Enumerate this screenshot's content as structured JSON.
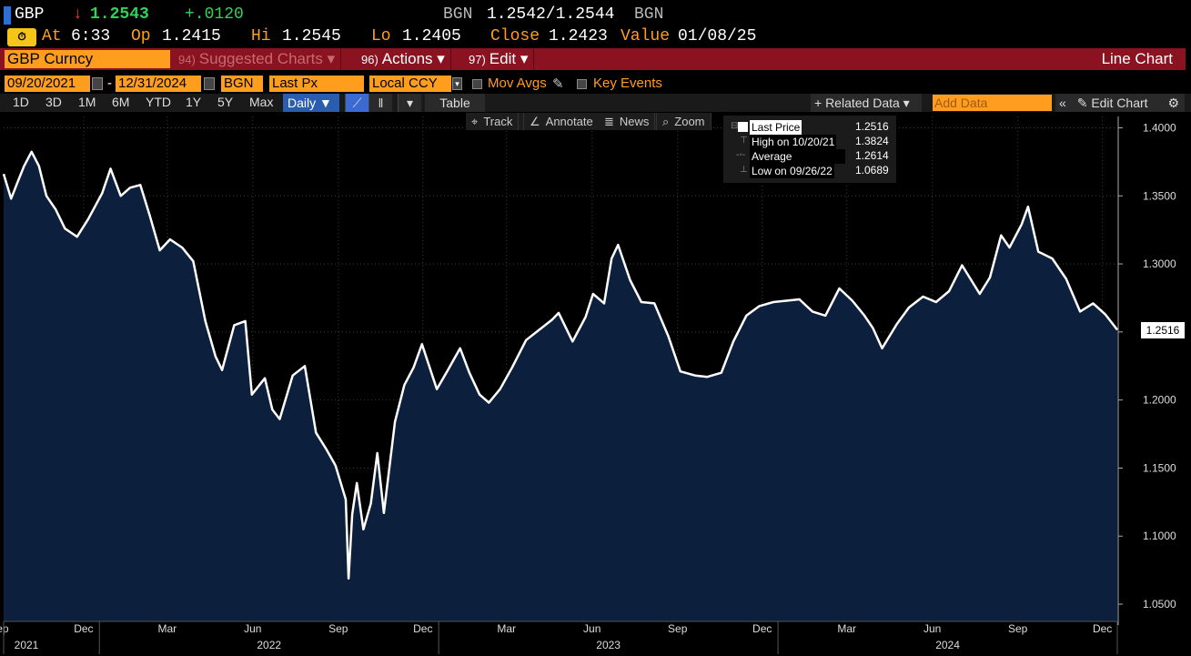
{
  "header": {
    "ticker": "GBP",
    "arrow": "↓",
    "last": "1.2543",
    "change": "+.0120",
    "source_l": "BGN",
    "bid_ask": "1.2542/1.2544",
    "source_r": "BGN",
    "at_label": "At",
    "time": "6:33",
    "op_label": "Op",
    "open": "1.2415",
    "hi_label": "Hi",
    "high": "1.2545",
    "lo_label": "Lo",
    "low": "1.2405",
    "close_label": "Close",
    "close": "1.2423",
    "value_label": "Value",
    "value_date": "01/08/25"
  },
  "toolbar": {
    "security": "GBP Curncy",
    "m94_num": "94)",
    "m94": "Suggested Charts",
    "m96_num": "96)",
    "m96": "Actions",
    "m97_num": "97)",
    "m97": "Edit",
    "chart_type": "Line Chart"
  },
  "controls": {
    "start_date": "09/20/2021",
    "dash": "-",
    "end_date": "12/31/2024",
    "source": "BGN",
    "field": "Last Px",
    "currency": "Local CCY",
    "mov_avgs": "Mov Avgs",
    "key_events": "Key Events"
  },
  "periods": {
    "items": [
      "1D",
      "3D",
      "1M",
      "6M",
      "YTD",
      "1Y",
      "5Y",
      "Max"
    ],
    "frequency": "Daily ▼",
    "table": "Table",
    "related": "+ Related Data ▾",
    "add_data_placeholder": "Add Data",
    "edit_chart": "Edit Chart"
  },
  "chart_tools": [
    "Track",
    "Annotate",
    "News",
    "Zoom"
  ],
  "legend": {
    "last_price_label": "Last Price",
    "last_price": "1.2516",
    "high_label": "High on 10/20/21",
    "high": "1.3824",
    "average_label": "Average",
    "average": "1.2614",
    "low_label": "Low on 09/26/22",
    "low": "1.0689"
  },
  "last_label": "1.2516",
  "colors": {
    "line": "#ffffff",
    "fill": "#0c1f3d",
    "accent": "#ff9d1e",
    "toolbar": "#8b1220"
  },
  "chart_data": {
    "type": "area",
    "x_start": "2021-09-20",
    "x_end": "2024-12-31",
    "ylim": [
      1.04,
      1.405
    ],
    "yticks": [
      "1.4000",
      "1.3500",
      "1.3000",
      "1.2500",
      "1.2000",
      "1.1500",
      "1.1000",
      "1.0500"
    ],
    "month_ticks": [
      "Sep",
      "Dec",
      "Mar",
      "Jun",
      "Sep",
      "Dec",
      "Mar",
      "Jun",
      "Sep",
      "Dec",
      "Mar",
      "Jun",
      "Sep",
      "Dec"
    ],
    "year_ticks": [
      "2021",
      "2022",
      "2023",
      "2024"
    ],
    "series": [
      {
        "x": [
          "2021-09-20",
          "2021-09-28",
          "2021-10-05",
          "2021-10-12",
          "2021-10-20",
          "2021-10-28",
          "2021-11-05",
          "2021-11-15",
          "2021-11-25",
          "2021-12-08",
          "2021-12-20",
          "2022-01-04",
          "2022-01-13",
          "2022-01-24",
          "2022-02-03",
          "2022-02-14",
          "2022-02-24",
          "2022-03-07",
          "2022-03-18",
          "2022-03-31",
          "2022-04-12",
          "2022-04-25",
          "2022-05-06",
          "2022-05-13",
          "2022-05-26",
          "2022-06-07",
          "2022-06-14",
          "2022-06-28",
          "2022-07-06",
          "2022-07-14",
          "2022-07-28",
          "2022-08-10",
          "2022-08-22",
          "2022-09-02",
          "2022-09-12",
          "2022-09-23",
          "2022-09-26",
          "2022-09-30",
          "2022-10-05",
          "2022-10-12",
          "2022-10-20",
          "2022-10-27",
          "2022-11-03",
          "2022-11-15",
          "2022-11-25",
          "2022-12-05",
          "2022-12-14",
          "2022-12-30",
          "2023-01-10",
          "2023-01-24",
          "2023-02-03",
          "2023-02-14",
          "2023-02-24",
          "2023-03-08",
          "2023-03-21",
          "2023-04-05",
          "2023-04-18",
          "2023-05-03",
          "2023-05-10",
          "2023-05-25",
          "2023-06-08",
          "2023-06-16",
          "2023-06-28",
          "2023-07-06",
          "2023-07-13",
          "2023-07-26",
          "2023-08-07",
          "2023-08-21",
          "2023-09-05",
          "2023-09-18",
          "2023-10-04",
          "2023-10-17",
          "2023-11-01",
          "2023-11-14",
          "2023-11-28",
          "2023-12-12",
          "2023-12-27",
          "2024-01-10",
          "2024-01-24",
          "2024-02-07",
          "2024-02-21",
          "2024-03-07",
          "2024-03-21",
          "2024-04-03",
          "2024-04-12",
          "2024-04-22",
          "2024-05-08",
          "2024-05-21",
          "2024-06-05",
          "2024-06-19",
          "2024-07-03",
          "2024-07-17",
          "2024-08-05",
          "2024-08-16",
          "2024-08-28",
          "2024-09-06",
          "2024-09-19",
          "2024-09-26",
          "2024-10-07",
          "2024-10-22",
          "2024-11-06",
          "2024-11-21",
          "2024-12-05",
          "2024-12-18",
          "2024-12-31"
        ],
        "y": [
          1.366,
          1.348,
          1.36,
          1.372,
          1.3824,
          1.372,
          1.35,
          1.34,
          1.326,
          1.32,
          1.333,
          1.352,
          1.37,
          1.35,
          1.356,
          1.358,
          1.336,
          1.31,
          1.318,
          1.312,
          1.302,
          1.258,
          1.232,
          1.222,
          1.255,
          1.258,
          1.204,
          1.216,
          1.193,
          1.186,
          1.218,
          1.225,
          1.176,
          1.164,
          1.152,
          1.127,
          1.0689,
          1.116,
          1.139,
          1.105,
          1.124,
          1.161,
          1.117,
          1.184,
          1.211,
          1.224,
          1.241,
          1.208,
          1.221,
          1.238,
          1.22,
          1.204,
          1.198,
          1.208,
          1.224,
          1.244,
          1.251,
          1.259,
          1.264,
          1.243,
          1.261,
          1.278,
          1.271,
          1.304,
          1.314,
          1.288,
          1.272,
          1.271,
          1.247,
          1.221,
          1.218,
          1.217,
          1.22,
          1.243,
          1.262,
          1.269,
          1.272,
          1.273,
          1.274,
          1.265,
          1.262,
          1.282,
          1.273,
          1.262,
          1.253,
          1.238,
          1.256,
          1.268,
          1.276,
          1.272,
          1.28,
          1.299,
          1.278,
          1.29,
          1.321,
          1.312,
          1.329,
          1.342,
          1.309,
          1.304,
          1.289,
          1.265,
          1.271,
          1.263,
          1.2516
        ]
      }
    ]
  }
}
